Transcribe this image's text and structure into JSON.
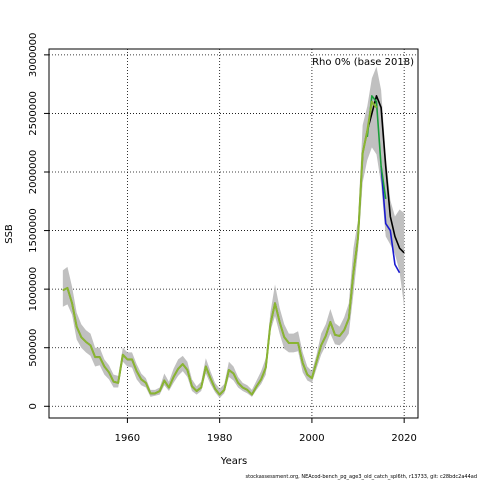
{
  "chart_data": {
    "type": "line",
    "title": "",
    "xlabel": "Years",
    "ylabel": "SSB",
    "xlim": [
      1943,
      2023
    ],
    "ylim": [
      -100000,
      3050000
    ],
    "grid": true,
    "xticks": [
      1960,
      1980,
      2000,
      2020
    ],
    "yticks": [
      0,
      500000,
      1000000,
      1500000,
      2000000,
      2500000,
      3000000
    ],
    "legend_text": "Rho 0% (base 2018)",
    "legend_position": "top-right",
    "footer": "stockassessment.org,  NEAcod-bench_pg_age3_old_catch_spl6th,  r13733,  git: c28bdc2a44ad",
    "band_color": "#c0c0c0",
    "band": {
      "x": [
        1946,
        1947,
        1948,
        1949,
        1950,
        1951,
        1952,
        1953,
        1954,
        1955,
        1956,
        1957,
        1958,
        1959,
        1960,
        1961,
        1962,
        1963,
        1964,
        1965,
        1966,
        1967,
        1968,
        1969,
        1970,
        1971,
        1972,
        1973,
        1974,
        1975,
        1976,
        1977,
        1978,
        1979,
        1980,
        1981,
        1982,
        1983,
        1984,
        1985,
        1986,
        1987,
        1988,
        1989,
        1990,
        1991,
        1992,
        1993,
        1994,
        1995,
        1996,
        1997,
        1998,
        1999,
        2000,
        2001,
        2002,
        2003,
        2004,
        2005,
        2006,
        2007,
        2008,
        2009,
        2010,
        2011,
        2012,
        2013,
        2014,
        2015,
        2016,
        2017,
        2018,
        2019,
        2020
      ],
      "lower": [
        850000,
        870000,
        780000,
        570000,
        500000,
        460000,
        430000,
        340000,
        350000,
        270000,
        230000,
        160000,
        160000,
        380000,
        340000,
        330000,
        230000,
        180000,
        160000,
        80000,
        90000,
        100000,
        180000,
        130000,
        200000,
        260000,
        300000,
        250000,
        130000,
        100000,
        130000,
        280000,
        190000,
        120000,
        70000,
        110000,
        250000,
        220000,
        160000,
        130000,
        110000,
        80000,
        140000,
        190000,
        270000,
        640000,
        770000,
        620000,
        490000,
        460000,
        460000,
        470000,
        290000,
        220000,
        200000,
        320000,
        440000,
        520000,
        620000,
        530000,
        520000,
        560000,
        620000,
        960000,
        1330000,
        1910000,
        2100000,
        2210000,
        2150000,
        1900000,
        1450000,
        1380000,
        1300000,
        1150000,
        850000
      ],
      "upper": [
        1160000,
        1190000,
        1020000,
        800000,
        700000,
        650000,
        620000,
        500000,
        500000,
        400000,
        350000,
        270000,
        260000,
        500000,
        460000,
        460000,
        360000,
        280000,
        240000,
        140000,
        140000,
        160000,
        280000,
        210000,
        320000,
        400000,
        430000,
        380000,
        230000,
        170000,
        210000,
        410000,
        300000,
        200000,
        150000,
        190000,
        380000,
        340000,
        250000,
        200000,
        180000,
        140000,
        220000,
        300000,
        410000,
        800000,
        1040000,
        840000,
        700000,
        620000,
        620000,
        640000,
        460000,
        340000,
        300000,
        440000,
        620000,
        700000,
        830000,
        710000,
        680000,
        760000,
        880000,
        1350000,
        1590000,
        2400000,
        2560000,
        2800000,
        2900000,
        2700000,
        2150000,
        1760000,
        1620000,
        1680000,
        1650000
      ]
    },
    "series": [
      {
        "color": "#000000",
        "x": [
          1946,
          1947,
          1948,
          1949,
          1950,
          1951,
          1952,
          1953,
          1954,
          1955,
          1956,
          1957,
          1958,
          1959,
          1960,
          1961,
          1962,
          1963,
          1964,
          1965,
          1966,
          1967,
          1968,
          1969,
          1970,
          1971,
          1972,
          1973,
          1974,
          1975,
          1976,
          1977,
          1978,
          1979,
          1980,
          1981,
          1982,
          1983,
          1984,
          1985,
          1986,
          1987,
          1988,
          1989,
          1990,
          1991,
          1992,
          1993,
          1994,
          1995,
          1996,
          1997,
          1998,
          1999,
          2000,
          2001,
          2002,
          2003,
          2004,
          2005,
          2006,
          2007,
          2008,
          2009,
          2010,
          2011,
          2012,
          2013,
          2014,
          2015,
          2016,
          2017,
          2018,
          2019,
          2020
        ],
        "values": [
          990000,
          1010000,
          880000,
          680000,
          590000,
          550000,
          520000,
          420000,
          420000,
          340000,
          290000,
          210000,
          200000,
          440000,
          400000,
          400000,
          300000,
          230000,
          200000,
          110000,
          110000,
          130000,
          220000,
          160000,
          250000,
          320000,
          360000,
          310000,
          170000,
          130000,
          160000,
          340000,
          240000,
          150000,
          100000,
          140000,
          310000,
          280000,
          200000,
          160000,
          140000,
          100000,
          170000,
          230000,
          330000,
          700000,
          880000,
          720000,
          590000,
          540000,
          540000,
          540000,
          370000,
          270000,
          240000,
          380000,
          520000,
          600000,
          720000,
          610000,
          600000,
          650000,
          750000,
          1140000,
          1440000,
          2160000,
          2350000,
          2500000,
          2650000,
          2550000,
          2050000,
          1620000,
          1450000,
          1350000,
          1310000
        ]
      },
      {
        "color": "#1a1ad0",
        "x": [
          2015,
          2016,
          2017,
          2018,
          2019
        ],
        "values": [
          2050000,
          1560000,
          1500000,
          1210000,
          1140000
        ]
      },
      {
        "color": "#1a9e3a",
        "x": [
          2012,
          2013,
          2014,
          2015,
          2016
        ],
        "values": [
          2300000,
          2650000,
          2600000,
          2050000,
          1770000
        ]
      },
      {
        "color": "#8ab532",
        "x": [
          1946,
          1947,
          1948,
          1949,
          1950,
          1951,
          1952,
          1953,
          1954,
          1955,
          1956,
          1957,
          1958,
          1959,
          1960,
          1961,
          1962,
          1963,
          1964,
          1965,
          1966,
          1967,
          1968,
          1969,
          1970,
          1971,
          1972,
          1973,
          1974,
          1975,
          1976,
          1977,
          1978,
          1979,
          1980,
          1981,
          1982,
          1983,
          1984,
          1985,
          1986,
          1987,
          1988,
          1989,
          1990,
          1991,
          1992,
          1993,
          1994,
          1995,
          1996,
          1997,
          1998,
          1999,
          2000,
          2001,
          2002,
          2003,
          2004,
          2005,
          2006,
          2007,
          2008,
          2009,
          2010,
          2011,
          2012,
          2013,
          2014
        ],
        "values": [
          990000,
          1010000,
          880000,
          680000,
          590000,
          550000,
          520000,
          420000,
          420000,
          340000,
          290000,
          210000,
          200000,
          440000,
          400000,
          400000,
          300000,
          230000,
          200000,
          110000,
          110000,
          130000,
          220000,
          160000,
          250000,
          320000,
          360000,
          310000,
          170000,
          130000,
          160000,
          340000,
          240000,
          150000,
          100000,
          140000,
          310000,
          280000,
          200000,
          160000,
          140000,
          100000,
          170000,
          230000,
          330000,
          700000,
          880000,
          720000,
          590000,
          540000,
          540000,
          540000,
          370000,
          270000,
          240000,
          380000,
          520000,
          600000,
          720000,
          610000,
          600000,
          650000,
          750000,
          1140000,
          1440000,
          2160000,
          2350000,
          2600000,
          2550000
        ]
      }
    ]
  }
}
